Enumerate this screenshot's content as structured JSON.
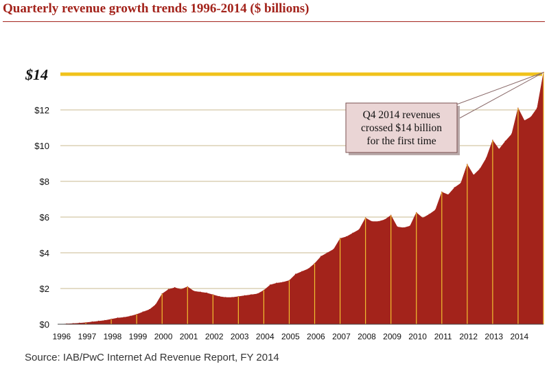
{
  "title": "Quarterly revenue growth trends 1996-2014 ($ billions)",
  "source": "Source: IAB/PwC Internet Ad Revenue Report, FY 2014",
  "colors": {
    "title": "#a3231b",
    "area_fill": "#a3231b",
    "quarter_lines": "#f2c230",
    "threshold_line": "#f0c21b",
    "grid": "#c9b98f",
    "callout_fill": "#ead5d5",
    "callout_border": "#7a5050"
  },
  "chart_data": {
    "type": "area",
    "title": "Quarterly revenue growth trends 1996-2014 ($ billions)",
    "xlabel": "",
    "ylabel": "",
    "ylim": [
      0,
      14
    ],
    "xlim": [
      1996,
      2015
    ],
    "grid": true,
    "y_ticks": [
      {
        "value": 0,
        "label": "$0"
      },
      {
        "value": 2,
        "label": "$2"
      },
      {
        "value": 4,
        "label": "$4"
      },
      {
        "value": 6,
        "label": "$6"
      },
      {
        "value": 8,
        "label": "$8"
      },
      {
        "value": 10,
        "label": "$10"
      },
      {
        "value": 12,
        "label": "$12"
      }
    ],
    "threshold": {
      "value": 14,
      "label": "$14"
    },
    "x_tick_labels": [
      "1996",
      "1997",
      "1998",
      "1999",
      "2000",
      "2001",
      "2002",
      "2003",
      "2004",
      "2005",
      "2006",
      "2007",
      "2008",
      "2009",
      "2010",
      "2011",
      "2012",
      "2013",
      "2014"
    ],
    "annotation": {
      "lines": [
        "Q4 2014 revenues",
        "crossed $14 billion",
        "for the first time"
      ]
    },
    "series": [
      {
        "quarters": [
          {
            "year": 1996,
            "values": [
              0.02,
              0.04,
              0.06,
              0.09
            ]
          },
          {
            "year": 1997,
            "values": [
              0.13,
              0.17,
              0.21,
              0.28
            ]
          },
          {
            "year": 1998,
            "values": [
              0.35,
              0.38,
              0.45,
              0.55
            ]
          },
          {
            "year": 1999,
            "values": [
              0.69,
              0.82,
              1.1,
              1.7
            ]
          },
          {
            "year": 2000,
            "values": [
              1.95,
              2.05,
              1.95,
              2.1
            ]
          },
          {
            "year": 2001,
            "values": [
              1.85,
              1.8,
              1.75,
              1.65
            ]
          },
          {
            "year": 2002,
            "values": [
              1.55,
              1.5,
              1.5,
              1.55
            ]
          },
          {
            "year": 2003,
            "values": [
              1.6,
              1.65,
              1.7,
              1.9
            ]
          },
          {
            "year": 2004,
            "values": [
              2.2,
              2.3,
              2.35,
              2.45
            ]
          },
          {
            "year": 2005,
            "values": [
              2.8,
              2.95,
              3.1,
              3.4
            ]
          },
          {
            "year": 2006,
            "values": [
              3.8,
              4.0,
              4.2,
              4.8
            ]
          },
          {
            "year": 2007,
            "values": [
              4.9,
              5.1,
              5.3,
              5.95
            ]
          },
          {
            "year": 2008,
            "values": [
              5.75,
              5.75,
              5.85,
              6.1
            ]
          },
          {
            "year": 2009,
            "values": [
              5.45,
              5.4,
              5.5,
              6.25
            ]
          },
          {
            "year": 2010,
            "values": [
              5.95,
              6.15,
              6.4,
              7.4
            ]
          },
          {
            "year": 2011,
            "values": [
              7.25,
              7.65,
              7.9,
              8.95
            ]
          },
          {
            "year": 2012,
            "values": [
              8.35,
              8.7,
              9.3,
              10.3
            ]
          },
          {
            "year": 2013,
            "values": [
              9.8,
              10.25,
              10.65,
              12.1
            ]
          },
          {
            "year": 2014,
            "values": [
              11.4,
              11.6,
              12.1,
              14.1
            ]
          }
        ]
      }
    ]
  }
}
